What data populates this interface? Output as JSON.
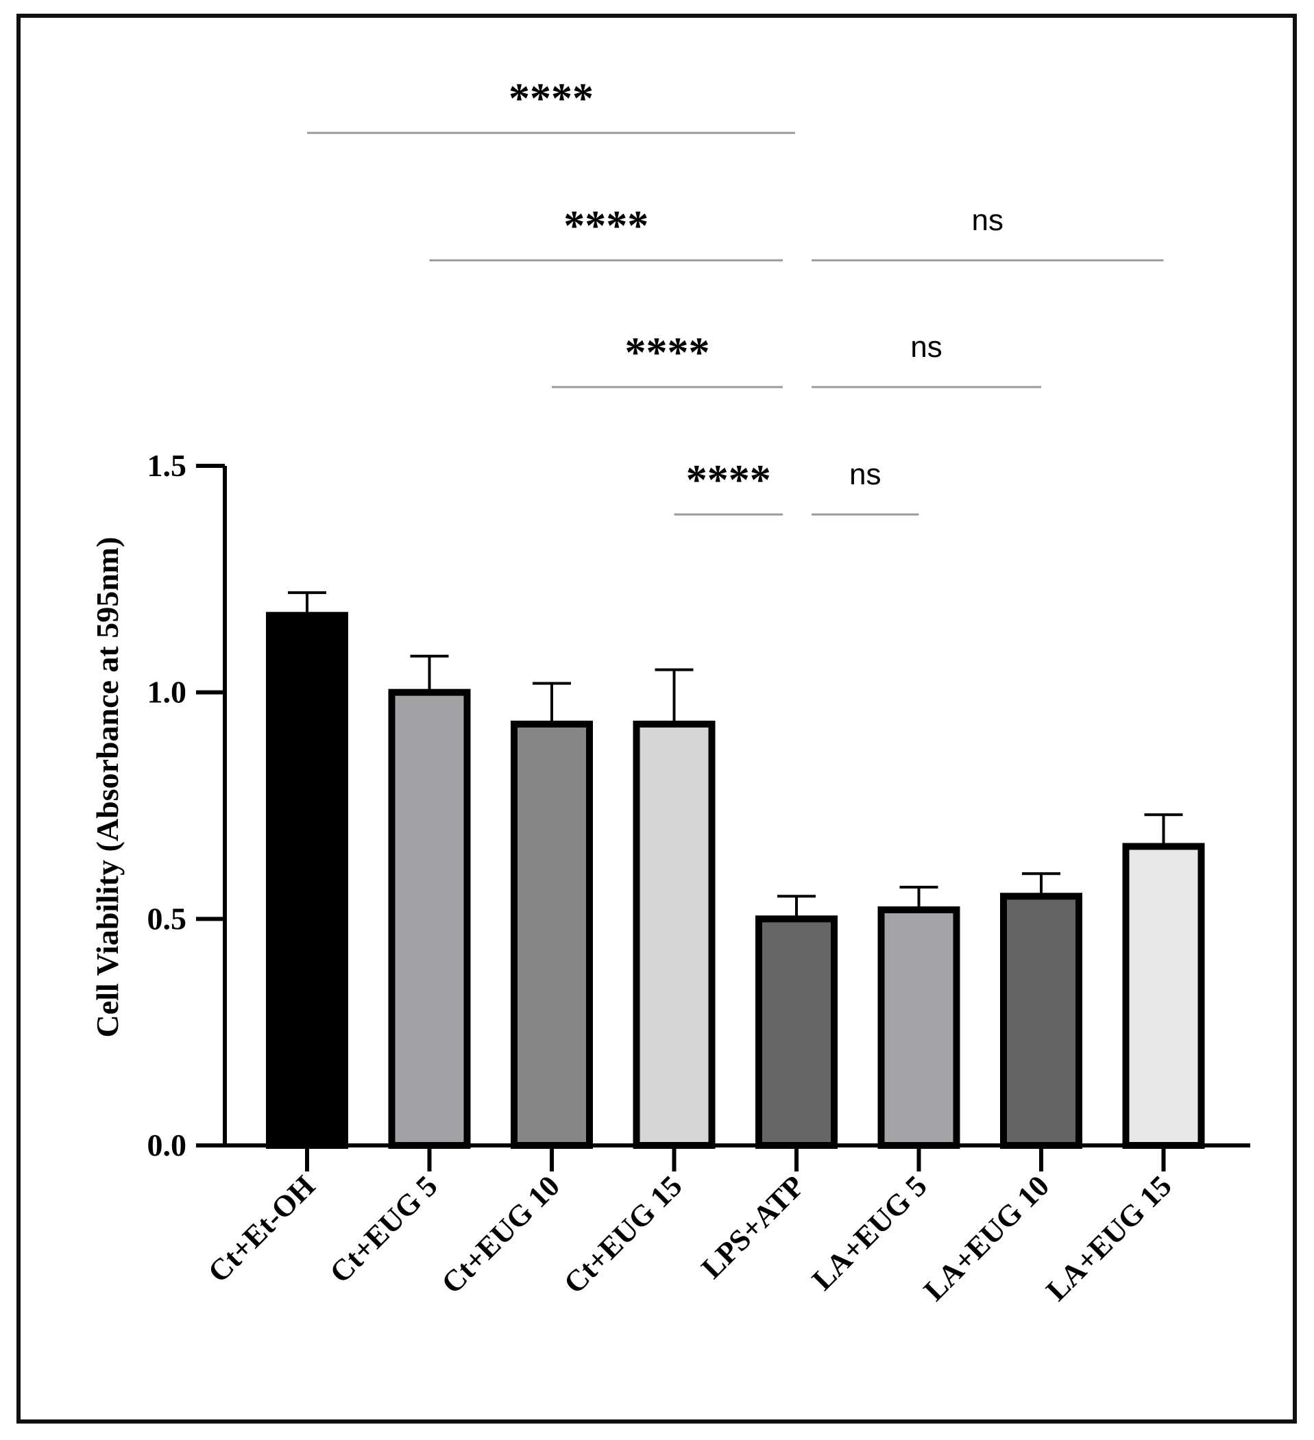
{
  "chart_data": {
    "type": "bar",
    "title": "",
    "xlabel": "",
    "ylabel": "Cell Viability (Absorbance at 595nm)",
    "ylim": [
      0,
      1.5
    ],
    "yticks": [
      0.0,
      0.5,
      1.0,
      1.5
    ],
    "ytick_labels": [
      "0.0",
      "0.5",
      "1.0",
      "1.5"
    ],
    "categories": [
      "Ct+Et-OH",
      "Ct+EUG 5",
      "Ct+EUG 10",
      "Ct+EUG 15",
      "LPS+ATP",
      "LA+EUG 5",
      "LA+EUG 10",
      "LA+EUG 15"
    ],
    "values": [
      1.17,
      1.0,
      0.93,
      0.93,
      0.5,
      0.52,
      0.55,
      0.66
    ],
    "errors": [
      0.05,
      0.08,
      0.09,
      0.12,
      0.05,
      0.05,
      0.05,
      0.07
    ],
    "bar_colors": [
      "#000000",
      "#a2a1a6",
      "#868686",
      "#d6d6d6",
      "#666666",
      "#a4a3a8",
      "#646464",
      "#e8e8e8"
    ],
    "grid": false,
    "significance": [
      {
        "from": "Ct+Et-OH",
        "to": "LPS+ATP",
        "label": "****",
        "level": 4
      },
      {
        "from": "Ct+EUG 5",
        "to": "LPS+ATP",
        "label": "****",
        "level": 3
      },
      {
        "from": "Ct+EUG 10",
        "to": "LPS+ATP",
        "label": "****",
        "level": 2
      },
      {
        "from": "Ct+EUG 15",
        "to": "LPS+ATP",
        "label": "****",
        "level": 1
      },
      {
        "from": "LPS+ATP",
        "to": "LA+EUG 15",
        "label": "ns",
        "level": 3
      },
      {
        "from": "LPS+ATP",
        "to": "LA+EUG 10",
        "label": "ns",
        "level": 2
      },
      {
        "from": "LPS+ATP",
        "to": "LA+EUG 5",
        "label": "ns",
        "level": 1
      }
    ]
  }
}
